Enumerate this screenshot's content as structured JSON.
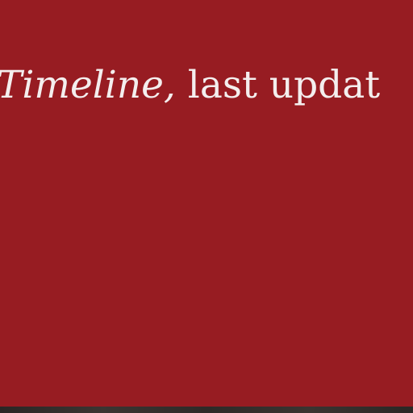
{
  "header": {
    "title_italic": "Timeline,",
    "title_rest": " last updat"
  },
  "colors": {
    "background": "#971c22",
    "text": "#f4eeee",
    "bottom_strip": "#2e2a28"
  }
}
